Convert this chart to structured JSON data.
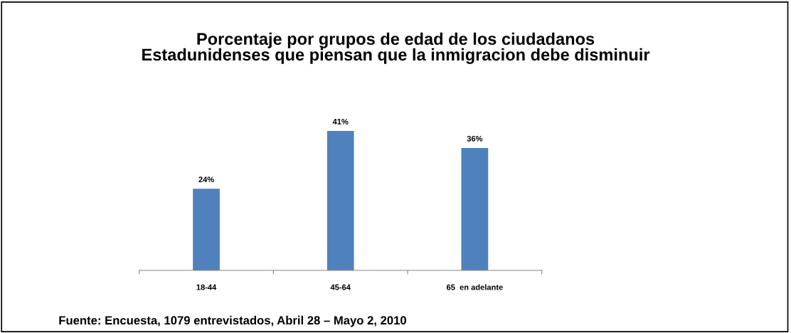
{
  "chart_data": {
    "type": "bar",
    "title": "Porcentaje por grupos de edad de los ciudadanos\nEstadunidenses que piensan que la inmigracion debe disminuir",
    "categories": [
      "18-44",
      "45-64",
      "65  en adelante"
    ],
    "values": [
      24,
      41,
      36
    ],
    "value_labels": [
      "24%",
      "41%",
      "36%"
    ],
    "color": "#4f81bd",
    "annotations": [
      "Fuente: Encuesta, 1079 entrevistados, Abril 28 – Mayo 2, 2010"
    ]
  }
}
